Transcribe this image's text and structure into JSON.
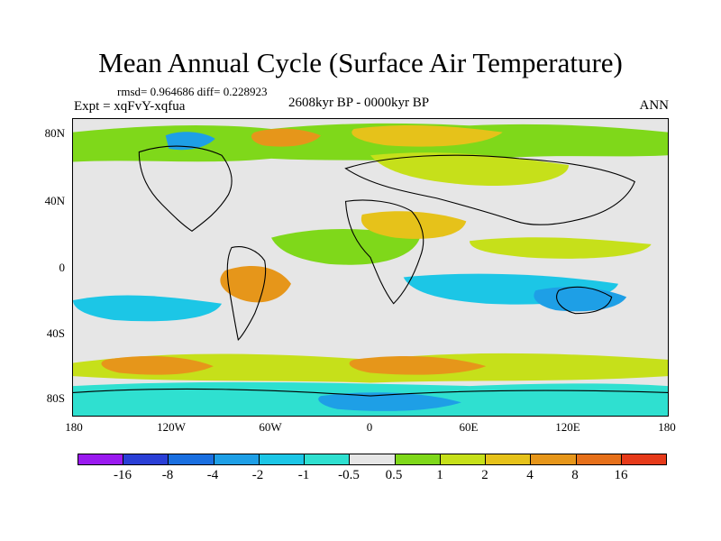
{
  "title": "Mean Annual Cycle (Surface Air Temperature)",
  "stats": "rmsd= 0.964686 diff= 0.228923",
  "experiment": "Expt = xqFvY-xqfua",
  "period": "2608kyr BP - 0000kyr BP",
  "season": "ANN",
  "axes": {
    "lat_labels": [
      "80N",
      "40N",
      "0",
      "40S",
      "80S"
    ],
    "lon_labels": [
      "180",
      "120W",
      "60W",
      "0",
      "60E",
      "120E",
      "180"
    ]
  },
  "colorbar": {
    "labels": [
      "-16",
      "-8",
      "-4",
      "-2",
      "-1",
      "-0.5",
      "0.5",
      "1",
      "2",
      "4",
      "8",
      "16"
    ],
    "colors": [
      "#9a1aef",
      "#2a3fd6",
      "#1a6fe0",
      "#1e9fe6",
      "#1cc6e6",
      "#2fe0d0",
      "#e6e6e6",
      "#7fd81a",
      "#c6e01a",
      "#e6c21a",
      "#e6961a",
      "#e6701a",
      "#e63a1a"
    ]
  },
  "map_colors": {
    "neutral": "#e6e6e6",
    "green": "#7fd81a",
    "yellowgreen": "#c6e01a",
    "gold": "#e6c21a",
    "orange": "#e6961a",
    "cyan": "#1cc6e6",
    "teal": "#2fe0d0",
    "blue": "#1e9fe6"
  }
}
